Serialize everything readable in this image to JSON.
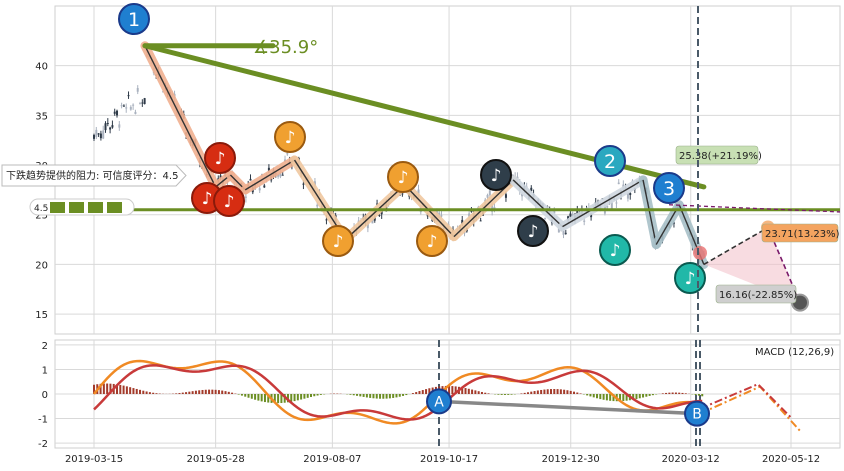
{
  "chart_data": [
    {
      "type": "candlestick",
      "panel": "price",
      "ylim": [
        13,
        46
      ],
      "yticks": [
        15,
        20,
        25,
        30,
        35,
        40
      ],
      "grid": true,
      "trendline": {
        "from": [
          "2019-04-15",
          42.0
        ],
        "to": [
          "2020-03-20",
          27.8
        ]
      },
      "support_level": 25.5,
      "angle_text": "∡35.9°",
      "resistance_note": "下跌趋势提供的阻力: 可信度评分：4.5",
      "rating_text": "4.5",
      "zigzag": [
        {
          "date": "2019-04-15",
          "value": 42.0
        },
        {
          "date": "2019-05-28",
          "value": 27.8
        },
        {
          "date": "2019-06-06",
          "value": 29.0
        },
        {
          "date": "2019-06-15",
          "value": 27.5
        },
        {
          "date": "2019-07-15",
          "value": 30.5
        },
        {
          "date": "2019-08-15",
          "value": 22.5
        },
        {
          "date": "2019-09-20",
          "value": 28.0
        },
        {
          "date": "2019-10-20",
          "value": 22.8
        },
        {
          "date": "2019-11-25",
          "value": 28.5
        },
        {
          "date": "2019-12-25",
          "value": 23.8
        },
        {
          "date": "2020-02-12",
          "value": 28.5
        },
        {
          "date": "2020-02-20",
          "value": 22.0
        },
        {
          "date": "2020-03-05",
          "value": 26.0
        },
        {
          "date": "2020-03-20",
          "value": 20.0
        }
      ],
      "wave_labels": [
        "1",
        "2",
        "3"
      ],
      "note_icon": "♪",
      "projections": [
        {
          "text": "25.38(+21.19%)",
          "value": 25.38,
          "color": "#c8e0b4"
        },
        {
          "text": "23.71(13.23%)",
          "value": 23.71,
          "color": "#f4a460"
        },
        {
          "text": "16.16(-22.85%)",
          "value": 16.16,
          "color": "#cfcfcf"
        }
      ]
    },
    {
      "type": "bar+line",
      "panel": "macd",
      "title": "MACD (12,26,9)",
      "ylim": [
        -2.2,
        2.2
      ],
      "yticks": [
        2,
        1,
        0,
        -1,
        -2
      ],
      "markers": [
        "A",
        "B"
      ]
    }
  ],
  "x_axis": {
    "ticks": [
      "2019-03-15",
      "2019-05-28",
      "2019-08-07",
      "2019-10-17",
      "2019-12-30",
      "2020-03-12",
      "2020-05-12"
    ]
  },
  "colors": {
    "trend": "#6b8e23",
    "wave1": "#1f7fd0",
    "wave2": "#2aa8c0",
    "red_note": "#d62d12",
    "orange_note": "#f0a030",
    "dark_note": "#2f3e4a",
    "teal_note": "#21b8a8",
    "macd_fast": "#f08a24",
    "macd_slow": "#c83a3a",
    "hist_pos": "#a33a2a",
    "hist_neg": "#6b8e23"
  }
}
